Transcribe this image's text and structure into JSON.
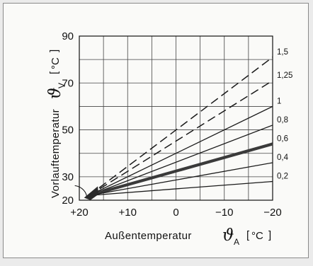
{
  "chart_data": {
    "type": "line",
    "title": "",
    "xlabel": "Außentemperatur",
    "xsymbol": "ϑ",
    "xsubscript": "A",
    "xunit": "°C",
    "ylabel": "Vorlauftemperatur",
    "ysymbol": "ϑ",
    "ysubscript": "V",
    "yunit": "°C",
    "xlim": [
      20,
      -20
    ],
    "ylim": [
      20,
      90
    ],
    "xticks": [
      20,
      10,
      0,
      -10,
      -20
    ],
    "xtick_labels": [
      "+20",
      "+10",
      "0",
      "−10",
      "−20"
    ],
    "yticks": [
      20,
      30,
      50,
      70,
      90
    ],
    "ytick_labels": [
      "20",
      "30",
      "50",
      "70",
      "90"
    ],
    "grid": true,
    "origin": [
      18,
      22
    ],
    "series": [
      {
        "name": "1,5",
        "style": "dashed",
        "values": [
          [
            18,
            22
          ],
          [
            -20,
            81
          ]
        ]
      },
      {
        "name": "1,25",
        "style": "dashed",
        "values": [
          [
            18,
            22
          ],
          [
            -20,
            71
          ]
        ]
      },
      {
        "name": "1",
        "style": "solid",
        "values": [
          [
            18,
            22
          ],
          [
            -20,
            60
          ]
        ]
      },
      {
        "name": "0,8",
        "style": "solid",
        "values": [
          [
            18,
            22
          ],
          [
            -20,
            52
          ]
        ]
      },
      {
        "name": "0,6",
        "style": "bold",
        "values": [
          [
            18,
            22
          ],
          [
            -20,
            44
          ]
        ]
      },
      {
        "name": "0,4",
        "style": "solid",
        "values": [
          [
            18,
            22
          ],
          [
            -20,
            36
          ]
        ]
      },
      {
        "name": "0,2",
        "style": "solid",
        "values": [
          [
            18,
            22
          ],
          [
            -20,
            28
          ]
        ]
      }
    ]
  }
}
